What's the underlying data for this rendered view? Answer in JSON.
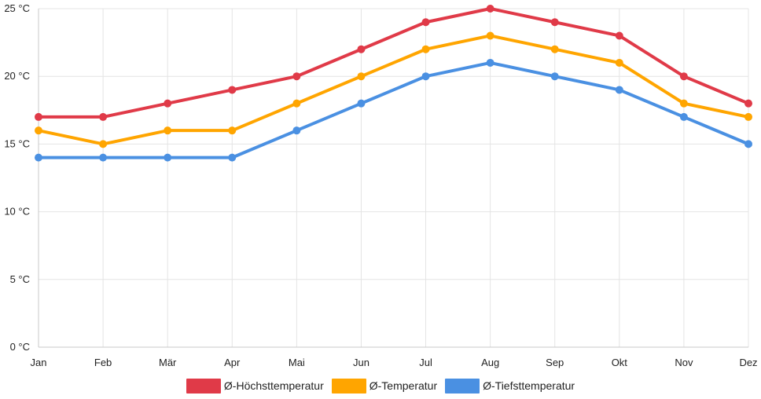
{
  "chart_data": {
    "type": "line",
    "title": "",
    "xlabel": "",
    "ylabel": "",
    "categories": [
      "Jan",
      "Feb",
      "Mär",
      "Apr",
      "Mai",
      "Jun",
      "Jul",
      "Aug",
      "Sep",
      "Okt",
      "Nov",
      "Dez"
    ],
    "ylim": [
      0,
      25
    ],
    "yticks": [
      {
        "value": 0,
        "label": "0 °C"
      },
      {
        "value": 5,
        "label": "5 °C"
      },
      {
        "value": 10,
        "label": "10 °C"
      },
      {
        "value": 15,
        "label": "15 °C"
      },
      {
        "value": 20,
        "label": "20 °C"
      },
      {
        "value": 25,
        "label": "25 °C"
      }
    ],
    "grid": true,
    "legend_position": "bottom",
    "series": [
      {
        "name": "Ø-Höchsttemperatur",
        "color": "#e03a48",
        "values": [
          17,
          17,
          18,
          19,
          20,
          22,
          24,
          25,
          24,
          23,
          20,
          18
        ]
      },
      {
        "name": "Ø-Temperatur",
        "color": "#ffa500",
        "values": [
          16,
          15,
          16,
          16,
          18,
          20,
          22,
          23,
          22,
          21,
          18,
          17
        ]
      },
      {
        "name": "Ø-Tiefsttemperatur",
        "color": "#4a90e2",
        "values": [
          14,
          14,
          14,
          14,
          16,
          18,
          20,
          21,
          20,
          19,
          17,
          15
        ]
      }
    ]
  }
}
